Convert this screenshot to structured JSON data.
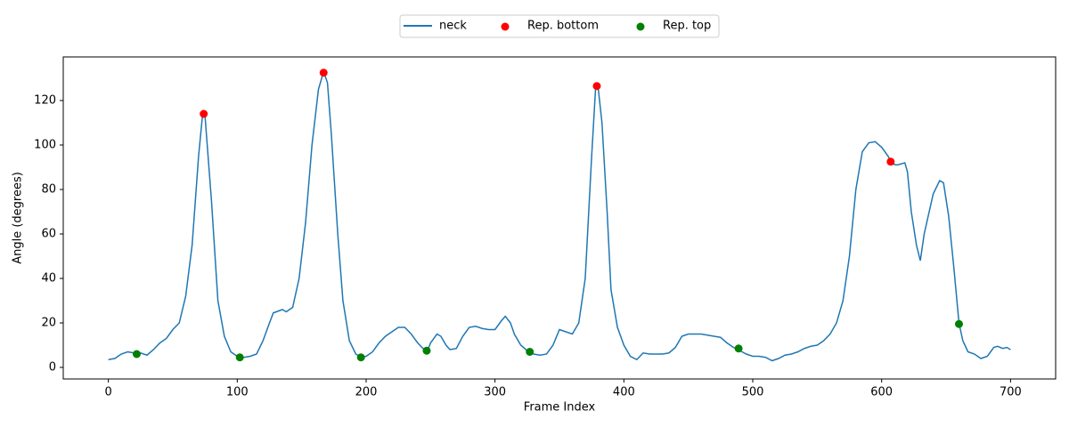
{
  "chart_data": {
    "type": "line",
    "xlabel": "Frame Index",
    "ylabel": "Angle (degrees)",
    "xlim": [
      -35,
      735
    ],
    "ylim": [
      -5.2,
      139.6
    ],
    "xticks": [
      0,
      100,
      200,
      300,
      400,
      500,
      600,
      700
    ],
    "yticks": [
      0,
      20,
      40,
      60,
      80,
      100,
      120
    ],
    "legend": "upper center outside",
    "series": [
      {
        "name": "neck",
        "type": "line",
        "color": "#1f77b4",
        "x": [
          0,
          5,
          10,
          15,
          20,
          25,
          30,
          35,
          40,
          45,
          50,
          55,
          60,
          65,
          70,
          73,
          75,
          80,
          85,
          90,
          95,
          100,
          105,
          110,
          115,
          120,
          125,
          128,
          135,
          138,
          143,
          148,
          153,
          158,
          163,
          167,
          170,
          173,
          178,
          182,
          187,
          192,
          196,
          200,
          205,
          210,
          215,
          220,
          225,
          230,
          235,
          240,
          245,
          248,
          250,
          255,
          258,
          262,
          265,
          270,
          275,
          280,
          285,
          290,
          295,
          300,
          305,
          308,
          312,
          315,
          320,
          325,
          330,
          335,
          340,
          345,
          350,
          355,
          360,
          365,
          370,
          375,
          378,
          380,
          383,
          387,
          390,
          395,
          400,
          405,
          410,
          415,
          420,
          425,
          430,
          435,
          440,
          445,
          450,
          455,
          460,
          465,
          470,
          475,
          480,
          485,
          490,
          495,
          500,
          505,
          510,
          515,
          520,
          525,
          530,
          535,
          540,
          545,
          550,
          555,
          560,
          565,
          570,
          575,
          580,
          585,
          590,
          595,
          600,
          605,
          608,
          612,
          618,
          620,
          623,
          627,
          630,
          633,
          640,
          645,
          648,
          652,
          656,
          660,
          663,
          667,
          672,
          677,
          682,
          687,
          690,
          694,
          697,
          700
        ],
        "values": [
          3.5,
          4,
          6,
          7,
          6.5,
          6.5,
          5.5,
          8,
          11,
          13,
          17,
          20,
          32,
          55,
          95,
          113,
          113,
          75,
          30,
          14,
          7,
          5,
          4.5,
          5,
          6,
          12,
          20,
          24.5,
          26,
          25,
          27,
          40,
          65,
          100,
          125,
          133,
          128,
          105,
          60,
          30,
          12,
          6,
          4.5,
          5,
          7,
          11,
          14,
          16,
          18,
          18,
          15,
          11,
          8,
          8,
          11,
          15,
          14,
          10,
          8,
          8.5,
          14,
          18,
          18.5,
          17.5,
          17,
          17,
          21,
          23,
          20,
          15,
          10,
          7.5,
          6,
          5.5,
          6,
          10,
          17,
          16,
          15,
          20,
          40,
          95,
          125,
          126,
          110,
          70,
          35,
          18,
          10,
          5,
          3.5,
          6.5,
          6,
          6,
          6,
          6.5,
          9,
          14,
          15,
          15,
          15,
          14.5,
          14,
          13.5,
          11,
          9,
          7.5,
          6,
          5,
          5,
          4.5,
          3,
          4,
          5.5,
          6,
          7,
          8.5,
          9.5,
          10,
          12,
          15,
          20,
          30,
          50,
          80,
          97,
          101,
          101.5,
          99,
          95,
          91.5,
          91,
          92,
          88,
          70,
          55,
          48,
          60,
          78,
          84,
          83,
          68,
          45,
          20,
          12,
          7,
          6,
          4,
          5,
          9,
          9.5,
          8.5,
          9,
          8
        ]
      },
      {
        "name": "Rep. bottom",
        "type": "scatter",
        "color": "#ff0000",
        "x": [
          74,
          167,
          379,
          607
        ],
        "values": [
          114,
          132.5,
          126.5,
          92.5
        ]
      },
      {
        "name": "Rep. top",
        "type": "scatter",
        "color": "#008000",
        "x": [
          22,
          102,
          196,
          247,
          327,
          489,
          660
        ],
        "values": [
          6,
          4.5,
          4.5,
          7.5,
          7,
          8.5,
          19.5
        ]
      }
    ]
  }
}
